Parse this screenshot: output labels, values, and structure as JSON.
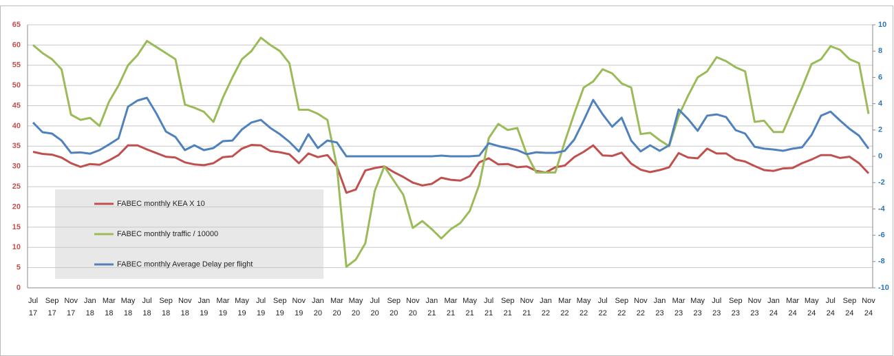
{
  "chart_data": {
    "type": "line",
    "categories": [
      [
        "Jul",
        "17"
      ],
      null,
      [
        "Sep",
        "17"
      ],
      null,
      [
        "Nov",
        "17"
      ],
      null,
      [
        "Jan",
        "18"
      ],
      null,
      [
        "Mar",
        "18"
      ],
      null,
      [
        "May",
        "18"
      ],
      null,
      [
        "Jul",
        "18"
      ],
      null,
      [
        "Sep",
        "18"
      ],
      null,
      [
        "Nov",
        "18"
      ],
      null,
      [
        "Jan",
        "19"
      ],
      null,
      [
        "Mar",
        "19"
      ],
      null,
      [
        "May",
        "19"
      ],
      null,
      [
        "Jul",
        "19"
      ],
      null,
      [
        "Sep",
        "19"
      ],
      null,
      [
        "Nov",
        "19"
      ],
      null,
      [
        "Jan",
        "20"
      ],
      null,
      [
        "Mar",
        "20"
      ],
      null,
      [
        "May",
        "20"
      ],
      null,
      [
        "Jul",
        "20"
      ],
      null,
      [
        "Sep",
        "20"
      ],
      null,
      [
        "Nov",
        "20"
      ],
      null,
      [
        "Jan",
        "21"
      ],
      null,
      [
        "Mar",
        "21"
      ],
      null,
      [
        "May",
        "21"
      ],
      null,
      [
        "Jul",
        "21"
      ],
      null,
      [
        "Sep",
        "21"
      ],
      null,
      [
        "Nov",
        "21"
      ],
      null,
      [
        "Jan",
        "22"
      ],
      null,
      [
        "Mar",
        "22"
      ],
      null,
      [
        "May",
        "22"
      ],
      null,
      [
        "Jul",
        "22"
      ],
      null,
      [
        "Sep",
        "22"
      ],
      null,
      [
        "Nov",
        "22"
      ],
      null,
      [
        "Jan",
        "23"
      ],
      null,
      [
        "Mar",
        "23"
      ],
      null,
      [
        "May",
        "23"
      ],
      null,
      [
        "Jul",
        "23"
      ],
      null,
      [
        "Sep",
        "23"
      ],
      null,
      [
        "Nov",
        "23"
      ],
      null,
      [
        "Jan",
        "24"
      ],
      null,
      [
        "Mar",
        "24"
      ],
      null,
      [
        "May",
        "24"
      ],
      null,
      [
        "Jul",
        "24"
      ],
      null,
      [
        "Sep",
        "24"
      ],
      null,
      [
        "Nov",
        "24"
      ]
    ],
    "series": [
      {
        "name": "FABEC monthly KEA X 10",
        "color": "#c0504d",
        "values": [
          33.6,
          33.1,
          32.9,
          32.2,
          30.8,
          29.9,
          30.6,
          30.4,
          31.5,
          32.8,
          35.2,
          35.2,
          34.2,
          33.3,
          32.4,
          32.2,
          31,
          30.5,
          30.3,
          30.8,
          32.3,
          32.5,
          34.4,
          35.3,
          35.2,
          33.8,
          33.5,
          33,
          30.8,
          33.2,
          32.3,
          32.8,
          30,
          23.5,
          24.3,
          29,
          29.6,
          30,
          28.6,
          27.4,
          26,
          25.3,
          25.7,
          27.2,
          26.7,
          26.5,
          27.6,
          31,
          32,
          30.5,
          30.6,
          29.8,
          30,
          28.9,
          28.5,
          29.8,
          30.2,
          32.3,
          33.6,
          35.2,
          32.7,
          32.6,
          33.4,
          30.7,
          29.2,
          28.6,
          29.1,
          29.8,
          33.3,
          32.2,
          32,
          34.4,
          33.2,
          33.2,
          31.7,
          31.2,
          30.1,
          29.1,
          28.9,
          29.5,
          29.6,
          30.8,
          31.7,
          32.8,
          32.8,
          32.1,
          32.4,
          30.8,
          28.3
        ]
      },
      {
        "name": "FABEC monthly traffic / 10000",
        "color": "#9bbb59",
        "values": [
          60,
          58,
          56.5,
          54,
          42.8,
          41.5,
          42,
          40,
          46,
          50,
          55,
          57.5,
          61,
          59.5,
          58,
          56.5,
          45.3,
          44.5,
          43.5,
          41,
          47,
          52,
          56.5,
          58.5,
          61.8,
          60,
          58.5,
          55.5,
          44,
          44,
          43,
          41.5,
          30,
          5.2,
          7,
          11,
          24,
          30,
          26.5,
          23,
          14.8,
          16.5,
          14.5,
          12.2,
          14.5,
          16,
          19,
          25.5,
          37,
          40.5,
          39,
          39.5,
          33,
          28.5,
          28.5,
          28.5,
          36,
          43,
          49.5,
          51,
          54,
          53,
          50.5,
          49.5,
          38,
          38.3,
          36.5,
          35,
          42.5,
          47.5,
          52,
          53.5,
          57,
          56,
          54.5,
          53.5,
          41,
          41.3,
          38.5,
          38.5,
          44,
          49.5,
          55.3,
          56.5,
          59.7,
          58.8,
          56.5,
          55.5,
          43
        ]
      },
      {
        "name": "FABEC monthly Average Delay per flight",
        "color": "#4f81bd",
        "axis": "y2",
        "values": [
          2.57,
          1.83,
          1.73,
          1.2,
          0.26,
          0.3,
          0.2,
          0.47,
          0.9,
          1.36,
          3.77,
          4.24,
          4.45,
          3.25,
          1.88,
          1.47,
          0.47,
          0.84,
          0.47,
          0.63,
          1.15,
          1.2,
          2.04,
          2.57,
          2.77,
          2.15,
          1.68,
          1.1,
          0.37,
          1.68,
          0.63,
          1.2,
          1.05,
          0,
          0,
          0,
          0,
          0,
          0,
          0,
          0,
          0,
          0,
          0.05,
          0,
          0,
          0,
          0.05,
          0.99,
          0.78,
          0.63,
          0.47,
          0.16,
          0.31,
          0.26,
          0.26,
          0.42,
          1.26,
          2.72,
          4.29,
          3.19,
          2.25,
          2.93,
          1.2,
          0.37,
          0.84,
          0.42,
          0.84,
          3.56,
          2.83,
          1.94,
          3.09,
          3.19,
          2.98,
          1.99,
          1.73,
          0.73,
          0.58,
          0.52,
          0.42,
          0.58,
          0.68,
          1.62,
          3.09,
          3.4,
          2.72,
          2.09,
          1.57,
          0.58
        ]
      }
    ],
    "ylim": [
      0,
      65
    ],
    "yticks": [
      0,
      5,
      10,
      15,
      20,
      25,
      30,
      35,
      40,
      45,
      50,
      55,
      60,
      65
    ],
    "y2lim": [
      -10,
      10
    ],
    "y2ticks": [
      -10,
      -8,
      -6,
      -4,
      -2,
      0,
      2,
      4,
      6,
      8,
      10
    ],
    "grid": true
  }
}
